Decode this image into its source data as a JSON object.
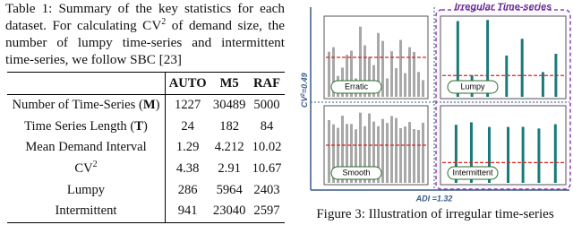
{
  "table_caption": [
    "Table 1: Summary of the key statistics for each dataset. For calculating CV",
    "2",
    " of demand size, the number of lumpy time-series and intermittent time-series, we follow SBC [23]"
  ],
  "table": {
    "header": [
      "AUTO",
      "M5",
      "RAF"
    ],
    "rows": [
      [
        [
          "Number of Time-Series (",
          "M",
          ")"
        ],
        "1227",
        "30489",
        "5000"
      ],
      [
        [
          "Time Series Length (",
          "T",
          ")"
        ],
        "24",
        "182",
        "84"
      ],
      [
        [
          "Mean Demand Interval"
        ],
        "1.29",
        "4.212",
        "10.02"
      ],
      [
        [
          "CV",
          "2"
        ],
        "4.38",
        "2.91",
        "10.67"
      ],
      [
        [
          "Lumpy"
        ],
        "286",
        "5964",
        "2403"
      ],
      [
        [
          "Intermittent"
        ],
        "941",
        "23040",
        "2597"
      ]
    ]
  },
  "figure": {
    "title": "Irregular Time-series",
    "panels": [
      "Erratic",
      "Lumpy",
      "Smooth",
      "Intermittent"
    ],
    "cv_label": [
      "CV",
      "2",
      "=0.49"
    ],
    "adi_label": "ADI =1.32",
    "caption": "Figure 3: Illustration of irregular time-series"
  }
}
